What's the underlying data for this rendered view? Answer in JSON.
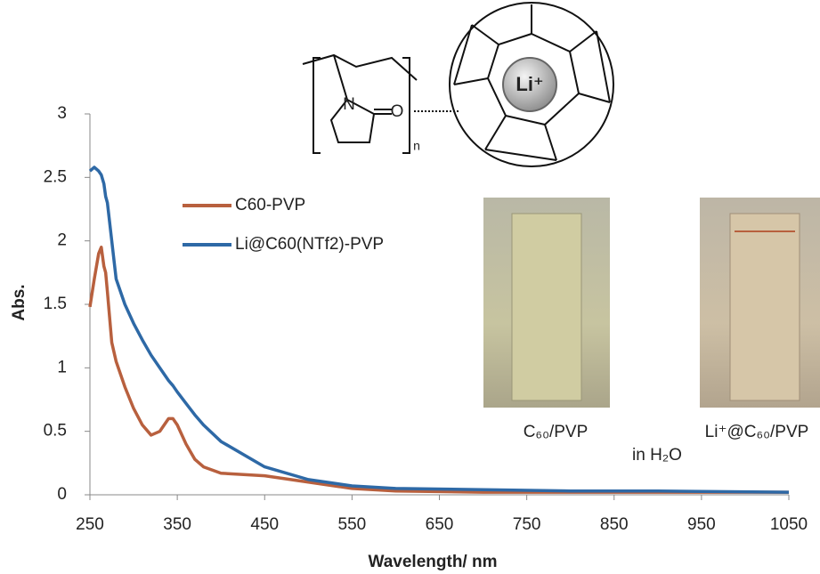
{
  "chart_data": {
    "type": "line",
    "x": [
      250,
      255,
      260,
      263,
      266,
      268,
      270,
      275,
      280,
      290,
      300,
      310,
      320,
      330,
      340,
      345,
      350,
      360,
      370,
      380,
      400,
      450,
      500,
      550,
      600,
      700,
      800,
      900,
      1050
    ],
    "series": [
      {
        "name": "C60-PVP",
        "color": "#b8603e",
        "values": [
          1.48,
          1.7,
          1.9,
          1.95,
          1.8,
          1.75,
          1.6,
          1.2,
          1.05,
          0.85,
          0.68,
          0.55,
          0.47,
          0.5,
          0.6,
          0.6,
          0.55,
          0.4,
          0.28,
          0.22,
          0.17,
          0.15,
          0.1,
          0.05,
          0.03,
          0.02,
          0.02,
          0.02,
          0.02
        ]
      },
      {
        "name": "Li@C60(NTf2)-PVP",
        "color": "#2e69a6",
        "values": [
          2.55,
          2.58,
          2.55,
          2.52,
          2.45,
          2.35,
          2.3,
          2.0,
          1.7,
          1.5,
          1.35,
          1.22,
          1.1,
          1.0,
          0.9,
          0.86,
          0.81,
          0.72,
          0.63,
          0.55,
          0.42,
          0.22,
          0.12,
          0.07,
          0.05,
          0.04,
          0.03,
          0.03,
          0.02
        ]
      }
    ],
    "xlim": [
      250,
      1050
    ],
    "xticks": [
      250,
      350,
      450,
      550,
      650,
      750,
      850,
      950,
      1050
    ],
    "ylim": [
      0,
      3
    ],
    "yticks": [
      0,
      0.5,
      1,
      1.5,
      2,
      2.5,
      3
    ],
    "x_label": "Wavelength/ nm",
    "y_label": "Abs.",
    "annotations": [
      "C₆₀/PVP",
      "Li⁺@C₆₀/PVP",
      "in H₂O"
    ],
    "structure_labels": [
      "N",
      "O",
      "n",
      "Li⁺"
    ]
  }
}
